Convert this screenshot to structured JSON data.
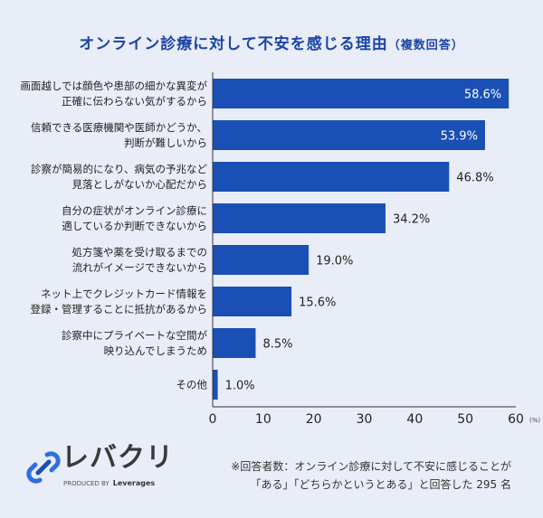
{
  "chart_data": {
    "type": "bar",
    "orientation": "horizontal",
    "title": "オンライン診療に対して不安を感じる理由",
    "subtitle": "（複数回答）",
    "categories": [
      [
        "画面越しでは顔色や患部の細かな異変が",
        "正確に伝わらない気がするから"
      ],
      [
        "信頼できる医療機関や医師かどうか、",
        "判断が難しいから"
      ],
      [
        "診察が簡易的になり、病気の予兆など",
        "見落としがないか心配だから"
      ],
      [
        "自分の症状がオンライン診療に",
        "適しているか判断できないから"
      ],
      [
        "処方箋や薬を受け取るまでの",
        "流れがイメージできないから"
      ],
      [
        "ネット上でクレジットカード情報を",
        "登録・管理することに抵抗があるから"
      ],
      [
        "診察中にプライベートな空間が",
        "映り込んでしまうため"
      ],
      [
        "その他"
      ]
    ],
    "values": [
      58.6,
      53.9,
      46.8,
      34.2,
      19.0,
      15.6,
      8.5,
      1.0
    ],
    "value_labels": [
      "58.6%",
      "53.9%",
      "46.8%",
      "34.2%",
      "19.0%",
      "15.6%",
      "8.5%",
      "1.0%"
    ],
    "xlim": [
      0,
      60
    ],
    "xticks": [
      "0",
      "10",
      "20",
      "30",
      "40",
      "50",
      "60"
    ],
    "xunit": "(%)",
    "grid": false,
    "bar_color": "#1a4fb5",
    "title_color": "#1b44a8"
  },
  "footer": {
    "logo": "レバクリ",
    "logo_sub": "PRODUCED BY",
    "logo_brand": "Leverages",
    "note_line1": "※回答者数：オンライン診療に対して不安に感じることが",
    "note_line2": "「ある」「どちらかというとある」と回答した 295 名"
  }
}
